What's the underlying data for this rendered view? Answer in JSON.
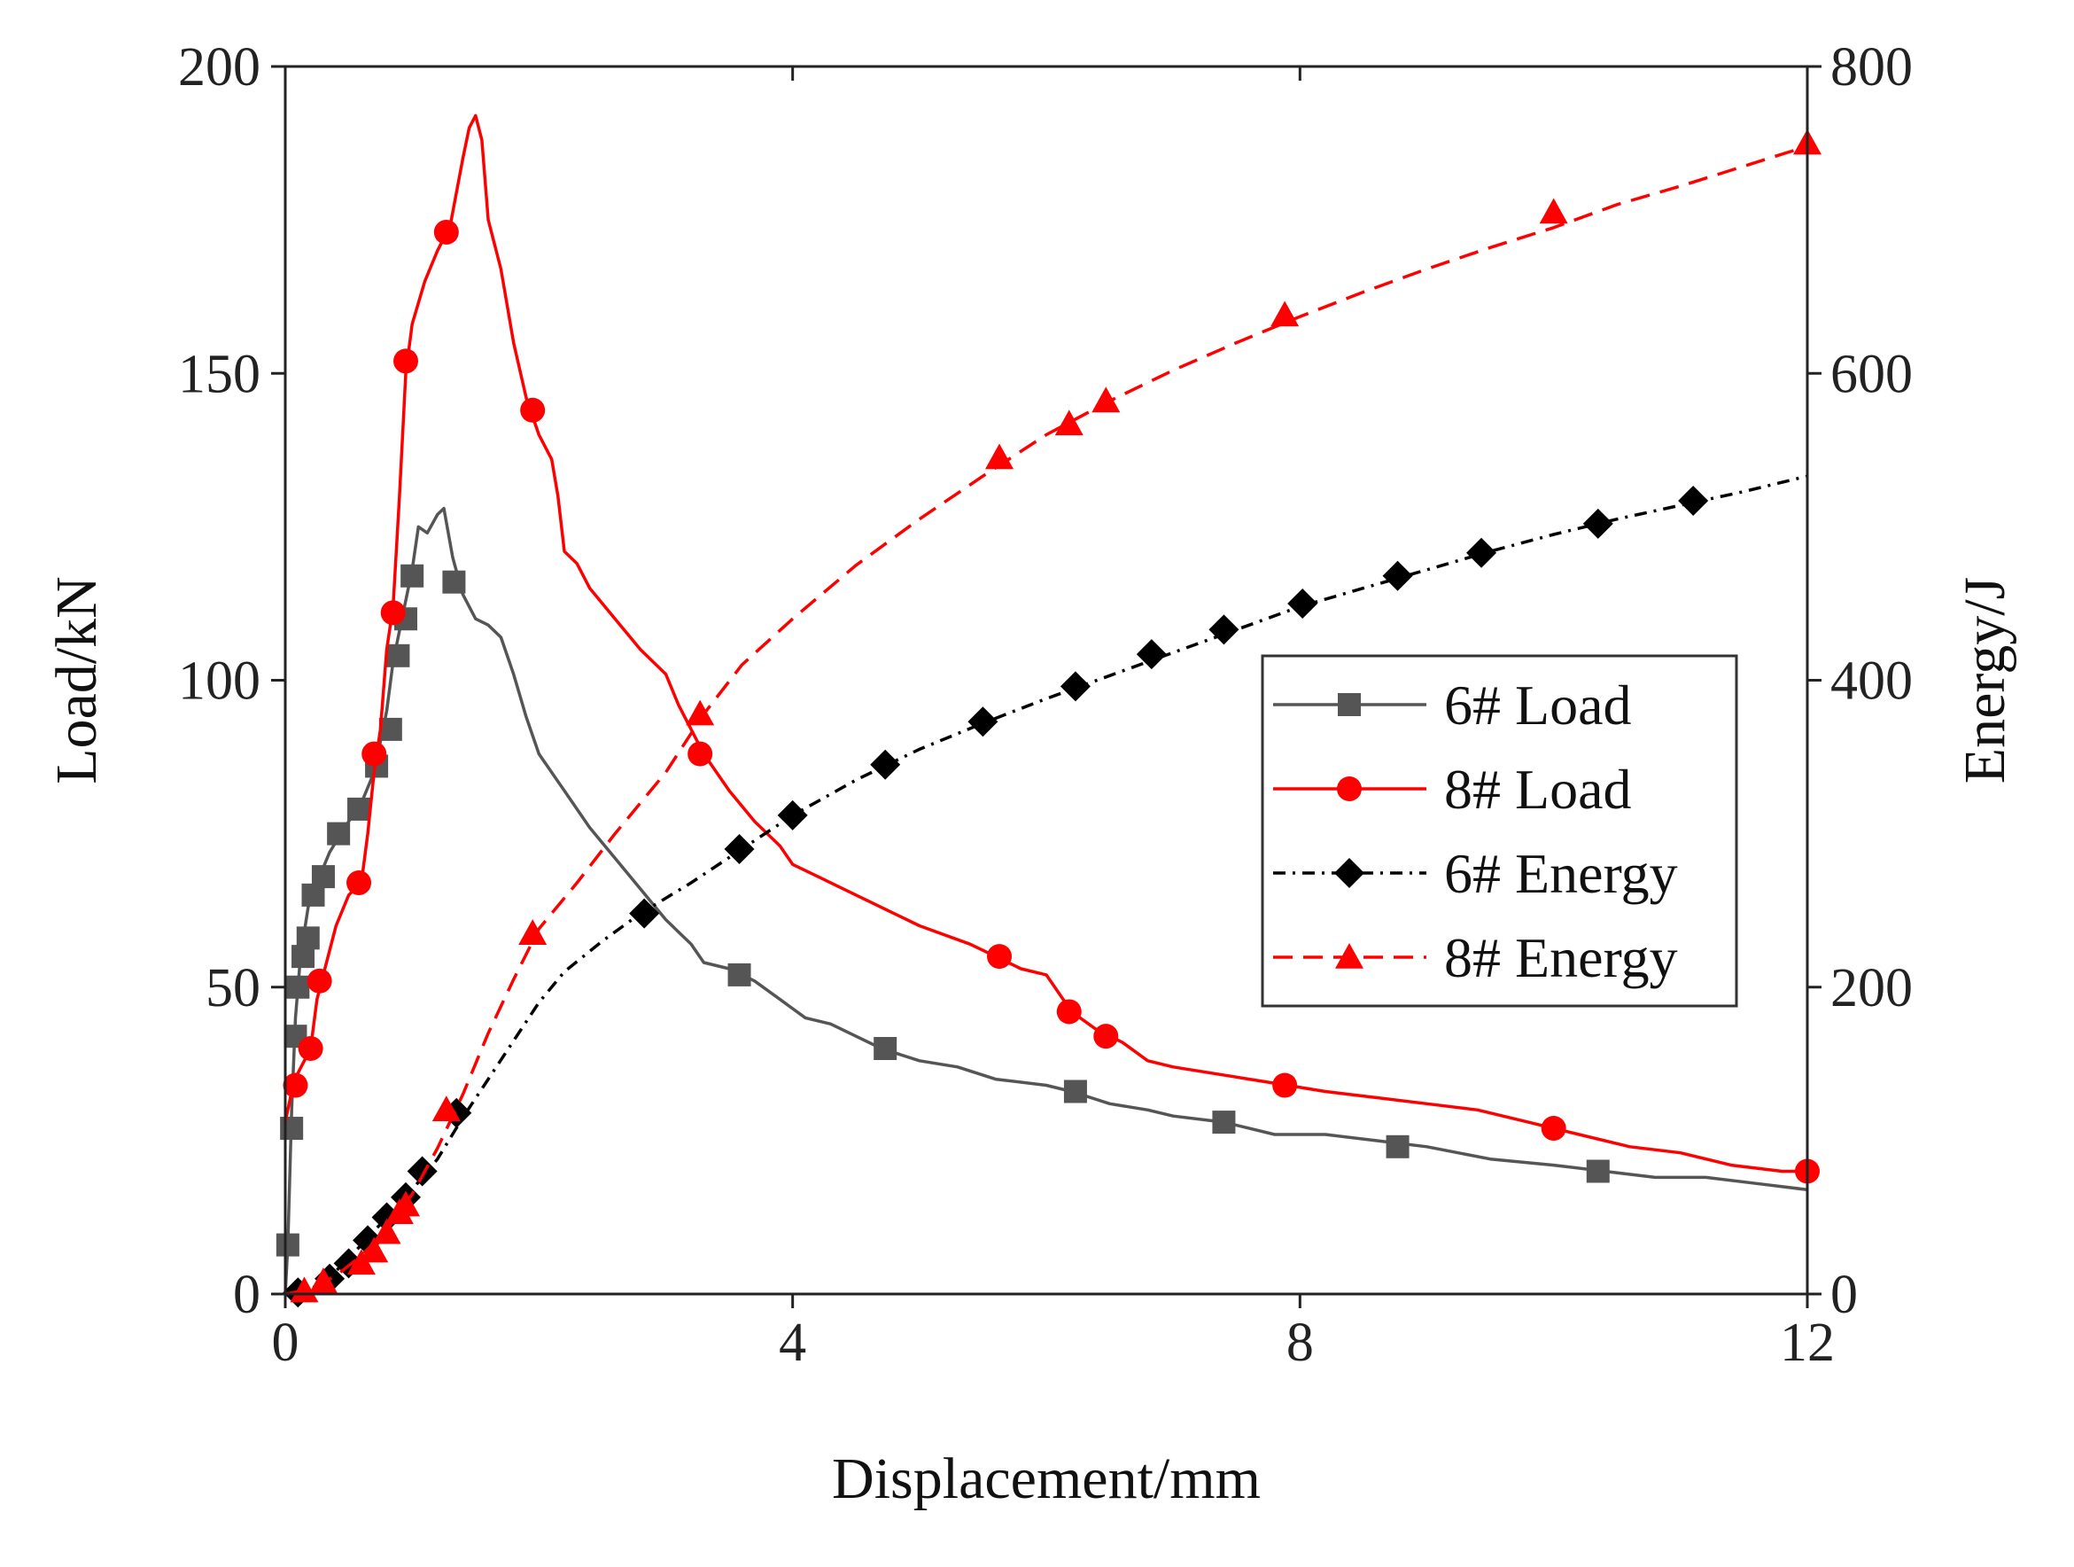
{
  "chart_data": {
    "type": "line",
    "title": "",
    "xlabel": "Displacement/mm",
    "ylabel_left": "Load/kN",
    "ylabel_right": "Energy/J",
    "xlim": [
      0,
      12
    ],
    "ylim_left": [
      0,
      200
    ],
    "ylim_right": [
      0,
      800
    ],
    "x_ticks": [
      0,
      4,
      8,
      12
    ],
    "y_left_ticks": [
      0,
      50,
      100,
      150,
      200
    ],
    "y_right_ticks": [
      0,
      200,
      400,
      600,
      800
    ],
    "grid": false,
    "legend_position": "center-right",
    "series": [
      {
        "name": "6# Load",
        "axis": "left",
        "color": "#555555",
        "line_style": "solid",
        "marker": "square",
        "curve": [
          [
            0,
            0
          ],
          [
            0.02,
            8
          ],
          [
            0.05,
            30
          ],
          [
            0.08,
            45
          ],
          [
            0.12,
            55
          ],
          [
            0.18,
            63
          ],
          [
            0.25,
            67
          ],
          [
            0.35,
            72
          ],
          [
            0.5,
            77
          ],
          [
            0.6,
            80
          ],
          [
            0.7,
            85
          ],
          [
            0.8,
            95
          ],
          [
            0.85,
            103
          ],
          [
            0.92,
            110
          ],
          [
            1.0,
            118
          ],
          [
            1.05,
            125
          ],
          [
            1.12,
            124
          ],
          [
            1.2,
            127
          ],
          [
            1.25,
            128
          ],
          [
            1.32,
            120
          ],
          [
            1.4,
            114
          ],
          [
            1.5,
            110
          ],
          [
            1.6,
            109
          ],
          [
            1.7,
            107
          ],
          [
            1.8,
            101
          ],
          [
            1.9,
            94
          ],
          [
            2.0,
            88
          ],
          [
            2.2,
            82
          ],
          [
            2.4,
            76
          ],
          [
            2.6,
            71
          ],
          [
            2.8,
            66
          ],
          [
            3.0,
            61
          ],
          [
            3.2,
            57
          ],
          [
            3.3,
            54
          ],
          [
            3.5,
            53
          ],
          [
            3.7,
            51
          ],
          [
            3.9,
            48
          ],
          [
            4.1,
            45
          ],
          [
            4.3,
            44
          ],
          [
            4.5,
            42
          ],
          [
            4.7,
            40
          ],
          [
            5.0,
            38
          ],
          [
            5.3,
            37
          ],
          [
            5.6,
            35
          ],
          [
            6.0,
            34
          ],
          [
            6.2,
            33
          ],
          [
            6.5,
            31
          ],
          [
            6.8,
            30
          ],
          [
            7.0,
            29
          ],
          [
            7.4,
            28
          ],
          [
            7.8,
            26
          ],
          [
            8.2,
            26
          ],
          [
            8.6,
            25
          ],
          [
            9.0,
            24
          ],
          [
            9.5,
            22
          ],
          [
            10.0,
            21
          ],
          [
            10.4,
            20
          ],
          [
            10.8,
            19
          ],
          [
            11.2,
            19
          ],
          [
            11.6,
            18
          ],
          [
            12.0,
            17
          ]
        ],
        "markers": [
          [
            0.02,
            8
          ],
          [
            0.05,
            27
          ],
          [
            0.08,
            42
          ],
          [
            0.1,
            50
          ],
          [
            0.14,
            55
          ],
          [
            0.18,
            58
          ],
          [
            0.22,
            65
          ],
          [
            0.3,
            68
          ],
          [
            0.42,
            75
          ],
          [
            0.58,
            79
          ],
          [
            0.72,
            86
          ],
          [
            0.83,
            92
          ],
          [
            0.89,
            104
          ],
          [
            0.95,
            110
          ],
          [
            1.0,
            117
          ],
          [
            1.33,
            116
          ],
          [
            3.58,
            52
          ],
          [
            4.73,
            40
          ],
          [
            6.23,
            33
          ],
          [
            7.4,
            28
          ],
          [
            8.77,
            24
          ],
          [
            10.35,
            20
          ]
        ]
      },
      {
        "name": "8# Load",
        "axis": "left",
        "color": "#ff0000",
        "line_style": "solid",
        "marker": "circle",
        "curve": [
          [
            0,
            28
          ],
          [
            0.05,
            33
          ],
          [
            0.1,
            36
          ],
          [
            0.15,
            38
          ],
          [
            0.2,
            40
          ],
          [
            0.25,
            48
          ],
          [
            0.3,
            52
          ],
          [
            0.4,
            60
          ],
          [
            0.5,
            65
          ],
          [
            0.6,
            67
          ],
          [
            0.65,
            75
          ],
          [
            0.7,
            85
          ],
          [
            0.75,
            92
          ],
          [
            0.8,
            105
          ],
          [
            0.85,
            112
          ],
          [
            0.9,
            130
          ],
          [
            0.95,
            150
          ],
          [
            1.0,
            158
          ],
          [
            1.1,
            165
          ],
          [
            1.2,
            170
          ],
          [
            1.3,
            174
          ],
          [
            1.4,
            185
          ],
          [
            1.45,
            190
          ],
          [
            1.5,
            192
          ],
          [
            1.55,
            188
          ],
          [
            1.6,
            175
          ],
          [
            1.7,
            167
          ],
          [
            1.8,
            155
          ],
          [
            1.9,
            146
          ],
          [
            2.0,
            140
          ],
          [
            2.1,
            136
          ],
          [
            2.15,
            130
          ],
          [
            2.2,
            121
          ],
          [
            2.3,
            119
          ],
          [
            2.4,
            115
          ],
          [
            2.6,
            110
          ],
          [
            2.8,
            105
          ],
          [
            3.0,
            101
          ],
          [
            3.1,
            96
          ],
          [
            3.2,
            92
          ],
          [
            3.3,
            88
          ],
          [
            3.5,
            82
          ],
          [
            3.7,
            77
          ],
          [
            3.9,
            73
          ],
          [
            4.0,
            70
          ],
          [
            4.2,
            68
          ],
          [
            4.5,
            65
          ],
          [
            4.8,
            62
          ],
          [
            5.0,
            60
          ],
          [
            5.4,
            57
          ],
          [
            5.6,
            55
          ],
          [
            5.8,
            53
          ],
          [
            6.0,
            52
          ],
          [
            6.2,
            46
          ],
          [
            6.4,
            43
          ],
          [
            6.6,
            41
          ],
          [
            6.8,
            38
          ],
          [
            7.0,
            37
          ],
          [
            7.3,
            36
          ],
          [
            7.6,
            35
          ],
          [
            7.9,
            34
          ],
          [
            8.2,
            33
          ],
          [
            8.6,
            32
          ],
          [
            9.0,
            31
          ],
          [
            9.4,
            30
          ],
          [
            9.8,
            28
          ],
          [
            10.2,
            26
          ],
          [
            10.6,
            24
          ],
          [
            11.0,
            23
          ],
          [
            11.4,
            21
          ],
          [
            11.8,
            20
          ],
          [
            12.0,
            20
          ]
        ],
        "markers": [
          [
            0.08,
            34
          ],
          [
            0.2,
            40
          ],
          [
            0.27,
            51
          ],
          [
            0.58,
            67
          ],
          [
            0.7,
            88
          ],
          [
            0.85,
            111
          ],
          [
            0.95,
            152
          ],
          [
            1.27,
            173
          ],
          [
            1.95,
            144
          ],
          [
            3.27,
            88
          ],
          [
            5.63,
            55
          ],
          [
            6.18,
            46
          ],
          [
            6.47,
            42
          ],
          [
            7.88,
            34
          ],
          [
            10.0,
            27
          ],
          [
            12.0,
            20
          ]
        ]
      },
      {
        "name": "6# Energy",
        "axis": "right",
        "color": "#000000",
        "line_style": "dash-dot",
        "marker": "diamond",
        "curve": [
          [
            0,
            0
          ],
          [
            0.2,
            3
          ],
          [
            0.4,
            15
          ],
          [
            0.6,
            32
          ],
          [
            0.8,
            50
          ],
          [
            1.0,
            68
          ],
          [
            1.2,
            88
          ],
          [
            1.4,
            115
          ],
          [
            1.6,
            140
          ],
          [
            1.8,
            165
          ],
          [
            2.0,
            190
          ],
          [
            2.2,
            210
          ],
          [
            2.5,
            230
          ],
          [
            2.8,
            248
          ],
          [
            3.2,
            268
          ],
          [
            3.6,
            290
          ],
          [
            4.0,
            312
          ],
          [
            4.5,
            335
          ],
          [
            5.0,
            355
          ],
          [
            5.5,
            372
          ],
          [
            6.0,
            388
          ],
          [
            6.5,
            403
          ],
          [
            7.0,
            418
          ],
          [
            7.5,
            433
          ],
          [
            8.0,
            448
          ],
          [
            8.5,
            460
          ],
          [
            9.0,
            472
          ],
          [
            9.5,
            484
          ],
          [
            10.0,
            495
          ],
          [
            10.5,
            505
          ],
          [
            11.0,
            514
          ],
          [
            11.5,
            523
          ],
          [
            12.0,
            533
          ]
        ],
        "markers": [
          [
            0.1,
            1
          ],
          [
            0.35,
            10
          ],
          [
            0.5,
            20
          ],
          [
            0.65,
            35
          ],
          [
            0.8,
            50
          ],
          [
            0.95,
            63
          ],
          [
            1.08,
            80
          ],
          [
            1.35,
            118
          ],
          [
            2.83,
            248
          ],
          [
            3.58,
            290
          ],
          [
            4.0,
            312
          ],
          [
            4.73,
            345
          ],
          [
            5.5,
            373
          ],
          [
            6.23,
            396
          ],
          [
            6.83,
            417
          ],
          [
            7.4,
            433
          ],
          [
            8.02,
            450
          ],
          [
            8.77,
            468
          ],
          [
            9.43,
            483
          ],
          [
            10.35,
            502
          ],
          [
            11.1,
            517
          ]
        ]
      },
      {
        "name": "8# Energy",
        "axis": "right",
        "color": "#ff0000",
        "line_style": "dashed",
        "marker": "triangle",
        "curve": [
          [
            0,
            0
          ],
          [
            0.2,
            3
          ],
          [
            0.4,
            12
          ],
          [
            0.6,
            25
          ],
          [
            0.8,
            42
          ],
          [
            1.0,
            65
          ],
          [
            1.2,
            95
          ],
          [
            1.4,
            130
          ],
          [
            1.6,
            170
          ],
          [
            1.8,
            205
          ],
          [
            2.0,
            238
          ],
          [
            2.3,
            268
          ],
          [
            2.6,
            300
          ],
          [
            3.0,
            340
          ],
          [
            3.3,
            378
          ],
          [
            3.6,
            410
          ],
          [
            4.0,
            440
          ],
          [
            4.5,
            475
          ],
          [
            5.0,
            505
          ],
          [
            5.5,
            533
          ],
          [
            6.0,
            560
          ],
          [
            6.5,
            582
          ],
          [
            7.0,
            602
          ],
          [
            7.5,
            620
          ],
          [
            8.0,
            637
          ],
          [
            8.5,
            653
          ],
          [
            9.0,
            668
          ],
          [
            9.5,
            682
          ],
          [
            10.0,
            695
          ],
          [
            10.5,
            710
          ],
          [
            11.0,
            722
          ],
          [
            11.5,
            735
          ],
          [
            12.0,
            748
          ]
        ],
        "markers": [
          [
            0.15,
            2
          ],
          [
            0.3,
            8
          ],
          [
            0.6,
            20
          ],
          [
            0.7,
            28
          ],
          [
            0.8,
            40
          ],
          [
            0.9,
            53
          ],
          [
            0.95,
            58
          ],
          [
            1.27,
            120
          ],
          [
            1.95,
            235
          ],
          [
            3.27,
            378
          ],
          [
            5.63,
            545
          ],
          [
            6.18,
            567
          ],
          [
            6.47,
            582
          ],
          [
            7.88,
            638
          ],
          [
            10.0,
            705
          ],
          [
            12.0,
            750
          ]
        ]
      }
    ]
  }
}
